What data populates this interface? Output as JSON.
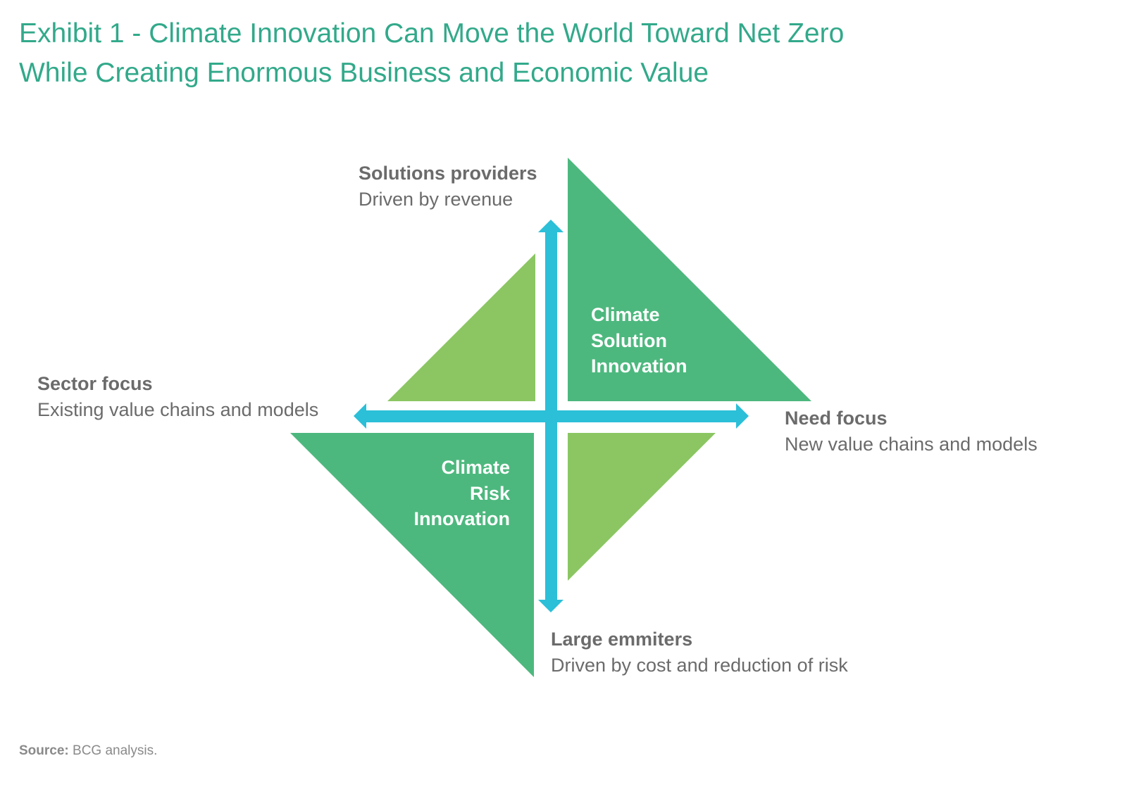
{
  "title": {
    "line1": "Exhibit 1 - Climate Innovation Can Move the World Toward Net Zero",
    "line2": "While Creating Enormous Business and Economic Value"
  },
  "diagram": {
    "top": {
      "heading": "Solutions providers",
      "sub": "Driven by revenue"
    },
    "left": {
      "heading": "Sector focus",
      "sub": "Existing value chains and models"
    },
    "right": {
      "heading": "Need focus",
      "sub": "New value chains and models"
    },
    "bottom": {
      "heading": "Large emmiters",
      "sub": "Driven by cost and reduction of risk"
    },
    "quadrant_top_right": {
      "line1": "Climate",
      "line2": "Solution",
      "line3": "Innovation"
    },
    "quadrant_bottom_left": {
      "line1": "Climate",
      "line2": "Risk",
      "line3": "Innovation"
    }
  },
  "source": {
    "label": "Source:",
    "text": "BCG analysis."
  },
  "colors": {
    "title": "#32a98a",
    "dark_green": "#4db87e",
    "light_green": "#8bc663",
    "arrow": "#2bbfd8",
    "label_text": "#6b6b6b"
  }
}
